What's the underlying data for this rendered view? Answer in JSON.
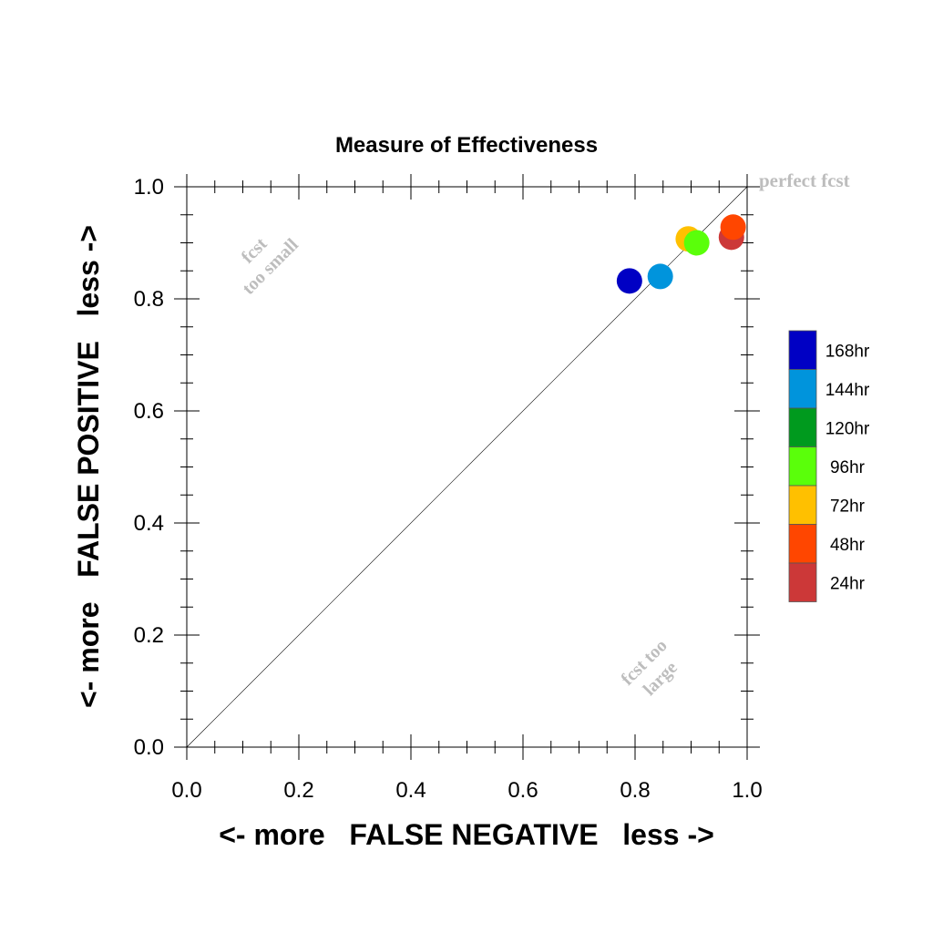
{
  "chart_data": {
    "type": "scatter",
    "title": "Measure of Effectiveness",
    "xlabel": "<- more   FALSE NEGATIVE   less ->",
    "ylabel": "<- more   FALSE POSITIVE   less ->",
    "xlim": [
      0,
      1
    ],
    "ylim": [
      0,
      1
    ],
    "xticks": [
      "0.0",
      "0.2",
      "0.4",
      "0.6",
      "0.8",
      "1.0"
    ],
    "yticks": [
      "0.0",
      "0.2",
      "0.4",
      "0.6",
      "0.8",
      "1.0"
    ],
    "grid": false,
    "legend_position": "right",
    "annotations": {
      "perfect": "perfect fcst",
      "too_small_1": "fcst",
      "too_small_2": "too small",
      "too_large_1": "fcst too",
      "too_large_2": "large"
    },
    "series": [
      {
        "name": "168hr",
        "color": "#0000c4",
        "x": 0.79,
        "y": 0.832
      },
      {
        "name": "144hr",
        "color": "#0094dc",
        "x": 0.845,
        "y": 0.84
      },
      {
        "name": "120hr",
        "color": "#009a1e",
        "x": null,
        "y": null
      },
      {
        "name": "96hr",
        "color": "#5aff0a",
        "x": 0.91,
        "y": 0.9
      },
      {
        "name": "72hr",
        "color": "#ffc000",
        "x": 0.895,
        "y": 0.907
      },
      {
        "name": "48hr",
        "color": "#ff4600",
        "x": 0.975,
        "y": 0.928
      },
      {
        "name": "24hr",
        "color": "#cc3838",
        "x": 0.972,
        "y": 0.91
      }
    ]
  }
}
